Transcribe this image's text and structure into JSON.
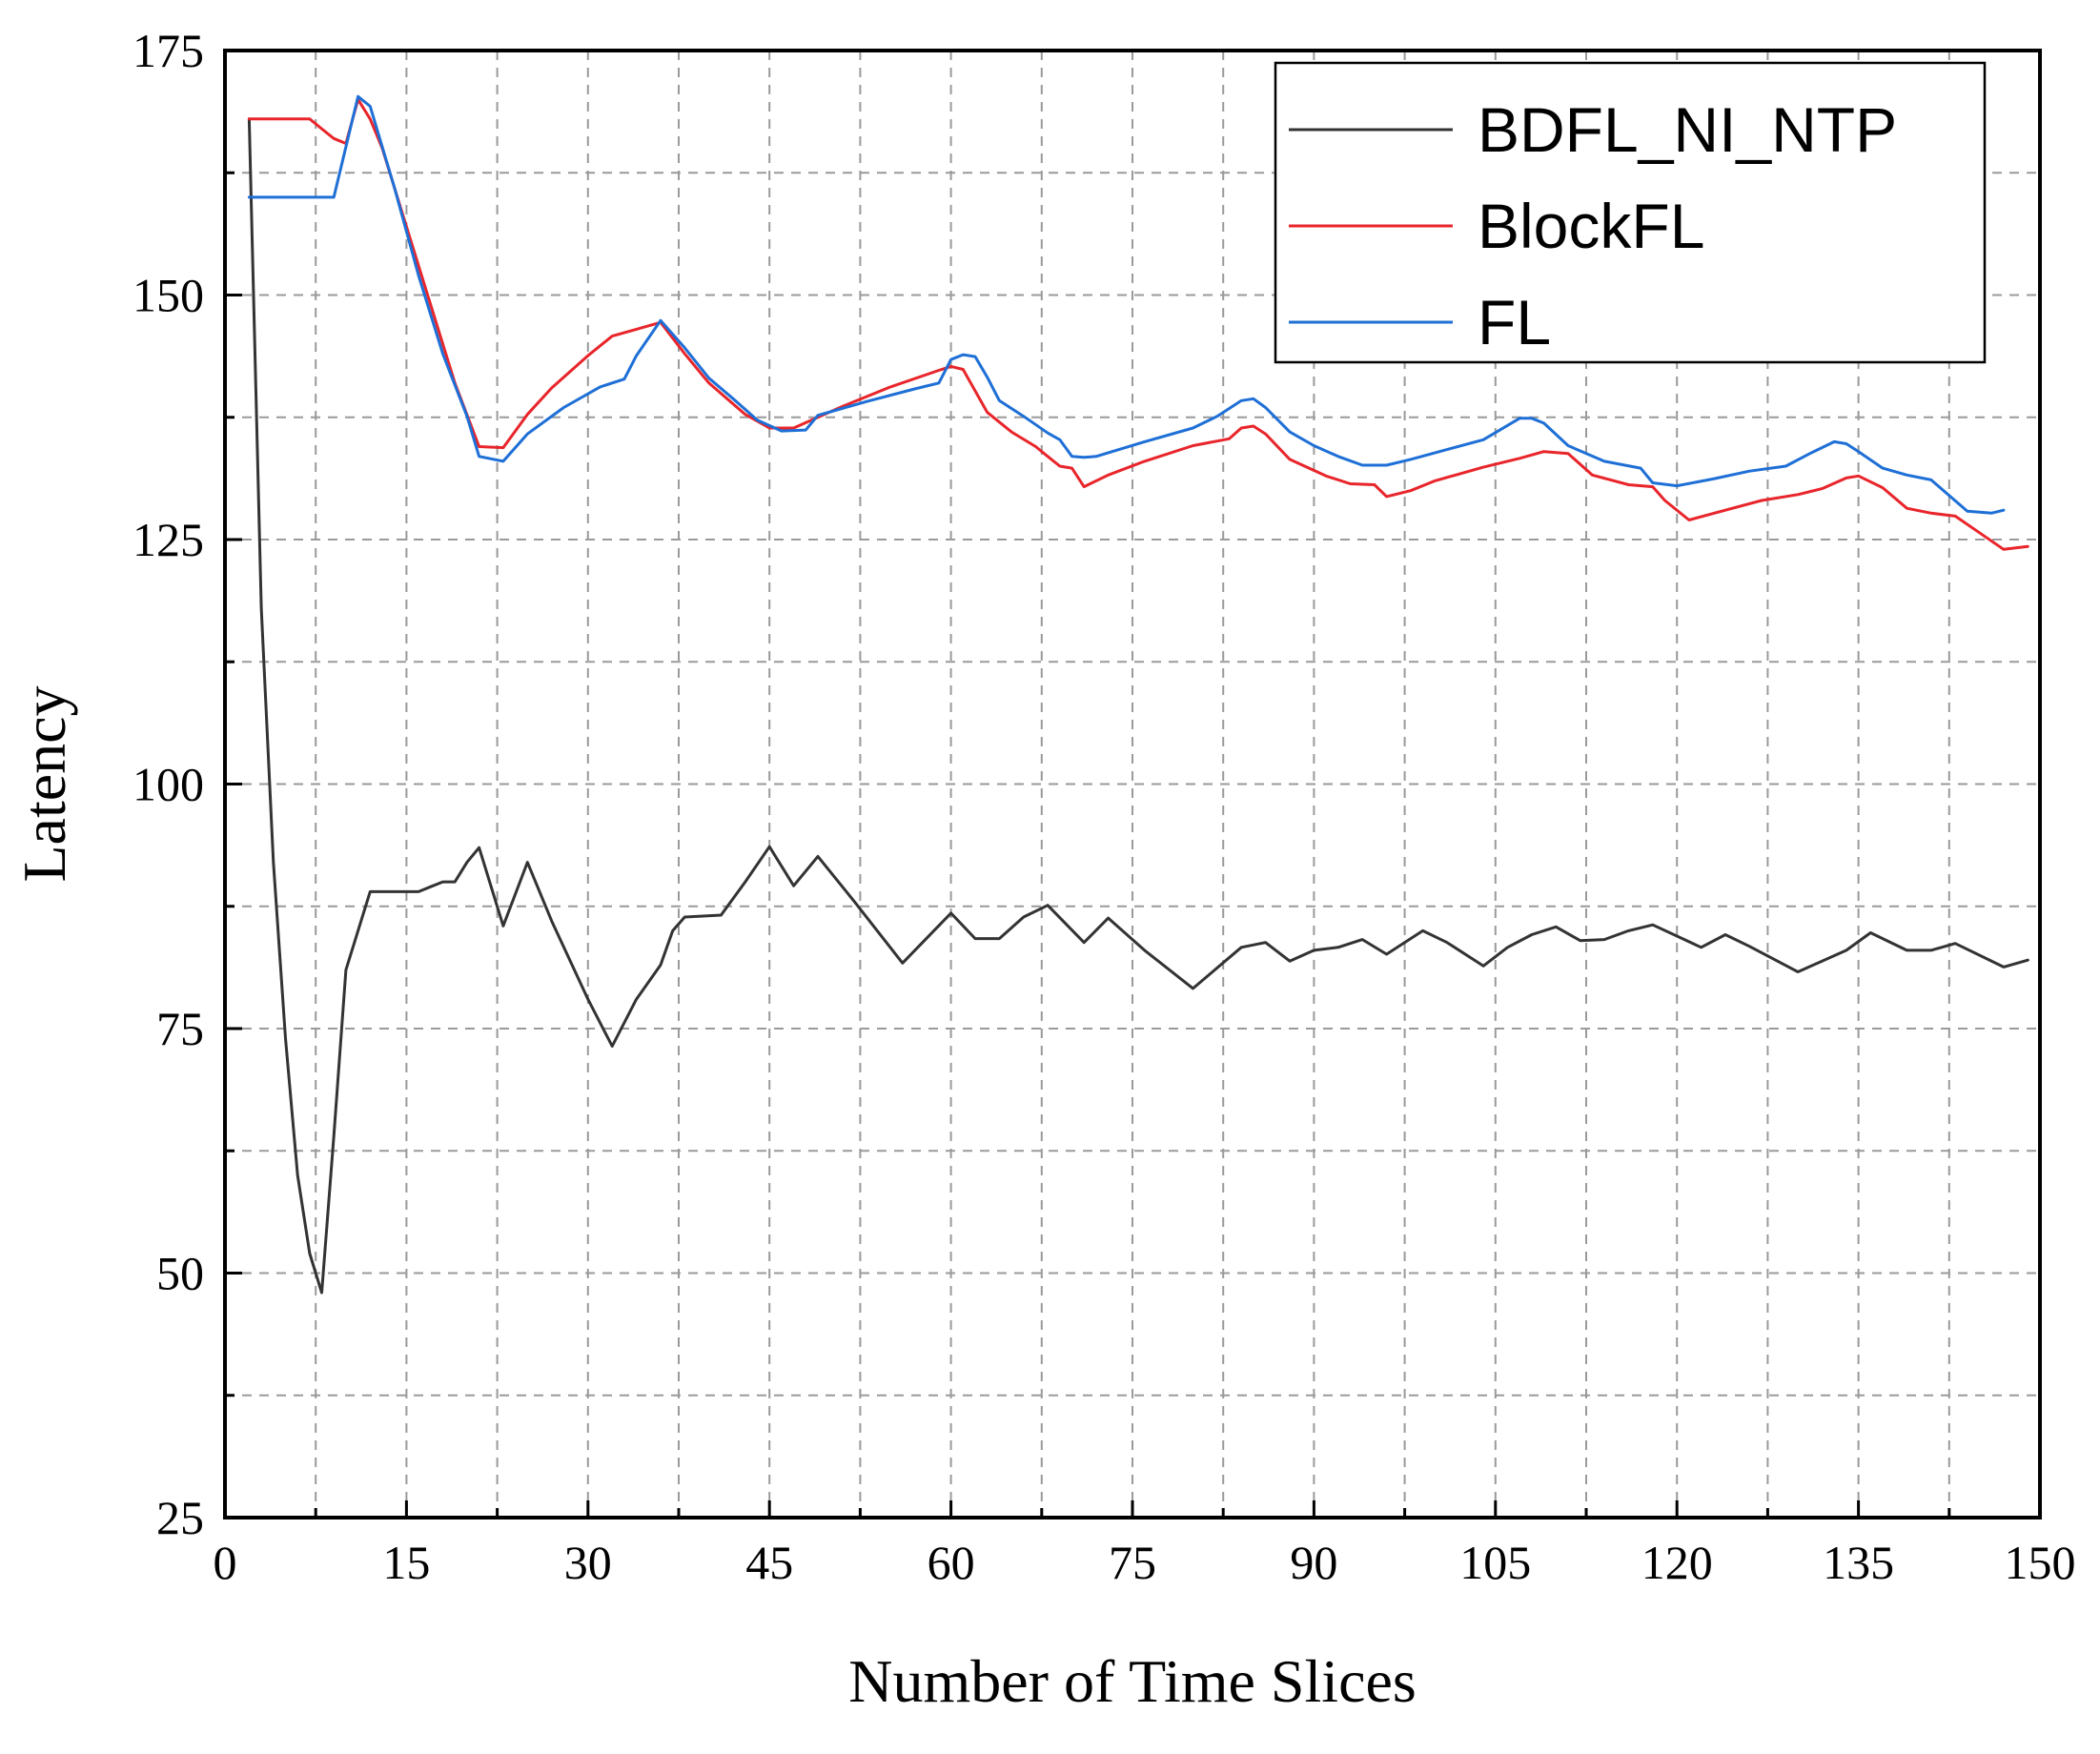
{
  "chart_data": {
    "type": "line",
    "title": "",
    "xlabel": "Number of Time Slices",
    "ylabel": "Latency",
    "xlim": [
      0,
      150
    ],
    "ylim": [
      25,
      175
    ],
    "xticks": [
      0,
      15,
      30,
      45,
      60,
      75,
      90,
      105,
      120,
      135,
      150
    ],
    "yticks": [
      25,
      50,
      75,
      100,
      125,
      150,
      175
    ],
    "xtick_labels": [
      "0",
      "15",
      "30",
      "45",
      "60",
      "75",
      "90",
      "105",
      "120",
      "135",
      "150"
    ],
    "ytick_labels": [
      "25",
      "50",
      "75",
      "100",
      "125",
      "150",
      "175"
    ],
    "grid": true,
    "legend_position": "top-right",
    "series": [
      {
        "name": "BDFL_NI_NTP",
        "color": "#333333",
        "points": [
          [
            2,
            168
          ],
          [
            3,
            118
          ],
          [
            4,
            92
          ],
          [
            5,
            74
          ],
          [
            6,
            60
          ],
          [
            7,
            52
          ],
          [
            8,
            48
          ],
          [
            9,
            64
          ],
          [
            10,
            81
          ],
          [
            11,
            85
          ],
          [
            12,
            89
          ],
          [
            13,
            89
          ],
          [
            14,
            89
          ],
          [
            15,
            89
          ],
          [
            16,
            89
          ],
          [
            17,
            89.5
          ],
          [
            18,
            90
          ],
          [
            19,
            90
          ],
          [
            20,
            92
          ],
          [
            21,
            93.5
          ],
          [
            23,
            85.5
          ],
          [
            25,
            92
          ],
          [
            27,
            86
          ],
          [
            30,
            78
          ],
          [
            32,
            73.2
          ],
          [
            34,
            78
          ],
          [
            36,
            81.5
          ],
          [
            37,
            85
          ],
          [
            38,
            86.4
          ],
          [
            41,
            86.6
          ],
          [
            43,
            90
          ],
          [
            45,
            93.6
          ],
          [
            47,
            89.6
          ],
          [
            49,
            92.6
          ],
          [
            52,
            88
          ],
          [
            56,
            81.7
          ],
          [
            60,
            86.8
          ],
          [
            62,
            84.2
          ],
          [
            64,
            84.2
          ],
          [
            66,
            86.4
          ],
          [
            68,
            87.6
          ],
          [
            71,
            83.8
          ],
          [
            73,
            86.3
          ],
          [
            76,
            83
          ],
          [
            80,
            79.1
          ],
          [
            84,
            83.3
          ],
          [
            86,
            83.8
          ],
          [
            88,
            81.9
          ],
          [
            90,
            83
          ],
          [
            92,
            83.3
          ],
          [
            94,
            84.1
          ],
          [
            96,
            82.6
          ],
          [
            99,
            85
          ],
          [
            101,
            83.8
          ],
          [
            104,
            81.4
          ],
          [
            106,
            83.3
          ],
          [
            108,
            84.6
          ],
          [
            110,
            85.4
          ],
          [
            112,
            84
          ],
          [
            114,
            84.1
          ],
          [
            116,
            85
          ],
          [
            118,
            85.6
          ],
          [
            122,
            83.3
          ],
          [
            124,
            84.6
          ],
          [
            126,
            83.4
          ],
          [
            130,
            80.8
          ],
          [
            134,
            83
          ],
          [
            136,
            84.8
          ],
          [
            139,
            83
          ],
          [
            141,
            83
          ],
          [
            143,
            83.7
          ],
          [
            147,
            81.3
          ],
          [
            149,
            82
          ]
        ]
      },
      {
        "name": "BlockFL",
        "color": "#e8252b",
        "points": [
          [
            2,
            168
          ],
          [
            7,
            168
          ],
          [
            8,
            167
          ],
          [
            9,
            166
          ],
          [
            10,
            165.5
          ],
          [
            11,
            170
          ],
          [
            12,
            168
          ],
          [
            13,
            165
          ],
          [
            15,
            157
          ],
          [
            17,
            149
          ],
          [
            19,
            141
          ],
          [
            21,
            134.5
          ],
          [
            23,
            134.4
          ],
          [
            25,
            137.8
          ],
          [
            27,
            140.5
          ],
          [
            30,
            143.8
          ],
          [
            32,
            145.8
          ],
          [
            34,
            146.5
          ],
          [
            36,
            147.2
          ],
          [
            38,
            144
          ],
          [
            40,
            141
          ],
          [
            43,
            137.8
          ],
          [
            45,
            136.4
          ],
          [
            47,
            136.4
          ],
          [
            51,
            138.6
          ],
          [
            55,
            140.6
          ],
          [
            59,
            142.3
          ],
          [
            60,
            142.7
          ],
          [
            61,
            142.4
          ],
          [
            63,
            138
          ],
          [
            65,
            136
          ],
          [
            67,
            134.5
          ],
          [
            68,
            133.5
          ],
          [
            69,
            132.5
          ],
          [
            70,
            132.3
          ],
          [
            71,
            130.4
          ],
          [
            73,
            131.6
          ],
          [
            76,
            133
          ],
          [
            80,
            134.6
          ],
          [
            83,
            135.3
          ],
          [
            84,
            136.4
          ],
          [
            85,
            136.6
          ],
          [
            86,
            135.8
          ],
          [
            88,
            133.2
          ],
          [
            91,
            131.5
          ],
          [
            93,
            130.7
          ],
          [
            95,
            130.6
          ],
          [
            96,
            129.4
          ],
          [
            98,
            130
          ],
          [
            100,
            131
          ],
          [
            104,
            132.4
          ],
          [
            107,
            133.3
          ],
          [
            109,
            134
          ],
          [
            111,
            133.8
          ],
          [
            113,
            131.6
          ],
          [
            116,
            130.6
          ],
          [
            118,
            130.4
          ],
          [
            119,
            129
          ],
          [
            121,
            127
          ],
          [
            124,
            128
          ],
          [
            127,
            129
          ],
          [
            130,
            129.6
          ],
          [
            132,
            130.2
          ],
          [
            134,
            131.3
          ],
          [
            135,
            131.5
          ],
          [
            137,
            130.3
          ],
          [
            139,
            128.2
          ],
          [
            141,
            127.7
          ],
          [
            143,
            127.4
          ],
          [
            145,
            125.7
          ],
          [
            147,
            124
          ],
          [
            149,
            124.3
          ]
        ]
      },
      {
        "name": "FL",
        "color": "#1e6fd6",
        "points": [
          [
            2,
            160
          ],
          [
            7,
            160
          ],
          [
            9,
            160
          ],
          [
            11,
            170.3
          ],
          [
            12,
            169.3
          ],
          [
            14,
            161
          ],
          [
            16,
            152
          ],
          [
            18,
            144
          ],
          [
            20,
            137.6
          ],
          [
            21,
            133.5
          ],
          [
            23,
            133
          ],
          [
            25,
            135.8
          ],
          [
            28,
            138.5
          ],
          [
            31,
            140.6
          ],
          [
            33,
            141.4
          ],
          [
            34,
            143.8
          ],
          [
            36,
            147.4
          ],
          [
            38,
            144.6
          ],
          [
            40,
            141.5
          ],
          [
            42,
            139.4
          ],
          [
            44,
            137.2
          ],
          [
            46,
            136.1
          ],
          [
            48,
            136.2
          ],
          [
            49,
            137.7
          ],
          [
            51,
            138.4
          ],
          [
            53,
            139.1
          ],
          [
            57,
            140.4
          ],
          [
            59,
            141
          ],
          [
            60,
            143.4
          ],
          [
            61,
            143.9
          ],
          [
            62,
            143.7
          ],
          [
            63,
            141.6
          ],
          [
            64,
            139.2
          ],
          [
            66,
            137.6
          ],
          [
            68,
            135.9
          ],
          [
            69,
            135.2
          ],
          [
            70,
            133.5
          ],
          [
            71,
            133.4
          ],
          [
            72,
            133.5
          ],
          [
            76,
            135
          ],
          [
            80,
            136.4
          ],
          [
            82,
            137.6
          ],
          [
            84,
            139.2
          ],
          [
            85,
            139.4
          ],
          [
            86,
            138.5
          ],
          [
            88,
            136
          ],
          [
            90,
            134.6
          ],
          [
            92,
            133.5
          ],
          [
            94,
            132.6
          ],
          [
            96,
            132.6
          ],
          [
            98,
            133.2
          ],
          [
            101,
            134.2
          ],
          [
            104,
            135.2
          ],
          [
            107,
            137.4
          ],
          [
            108,
            137.4
          ],
          [
            109,
            136.9
          ],
          [
            111,
            134.6
          ],
          [
            114,
            133
          ],
          [
            117,
            132.3
          ],
          [
            118,
            130.8
          ],
          [
            120,
            130.5
          ],
          [
            123,
            131.2
          ],
          [
            126,
            132
          ],
          [
            129,
            132.5
          ],
          [
            131,
            133.8
          ],
          [
            133,
            135
          ],
          [
            134,
            134.8
          ],
          [
            135,
            134
          ],
          [
            137,
            132.3
          ],
          [
            139,
            131.6
          ],
          [
            141,
            131.1
          ],
          [
            144,
            127.9
          ],
          [
            146,
            127.7
          ],
          [
            147,
            128
          ]
        ]
      }
    ]
  }
}
